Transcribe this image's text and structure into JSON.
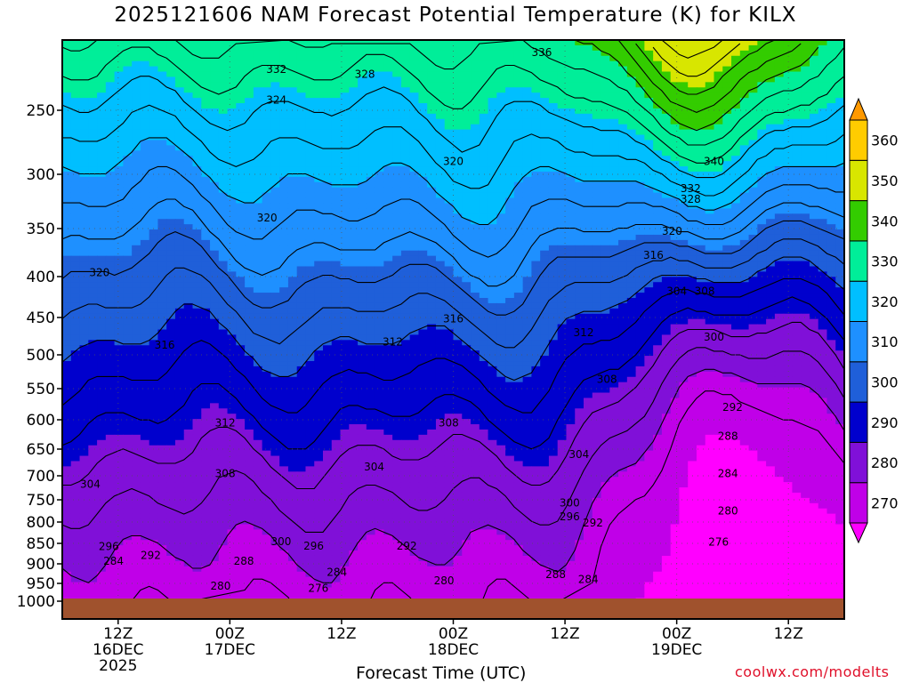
{
  "title": "2025121606 NAM Forecast Potential Temperature (K) for KILX",
  "credit": "coolwx.com/modelts",
  "chart_data": {
    "type": "heatmap",
    "title": "2025121606 NAM Forecast Potential Temperature (K) for KILX",
    "xlabel": "Forecast Time (UTC)",
    "ylabel": "",
    "x_ticks": [
      {
        "hours": 6,
        "lines": [
          "12Z",
          "16DEC",
          "2025"
        ]
      },
      {
        "hours": 18,
        "lines": [
          "00Z",
          "17DEC"
        ]
      },
      {
        "hours": 30,
        "lines": [
          "12Z"
        ]
      },
      {
        "hours": 42,
        "lines": [
          "00Z",
          "18DEC"
        ]
      },
      {
        "hours": 54,
        "lines": [
          "12Z"
        ]
      },
      {
        "hours": 66,
        "lines": [
          "00Z",
          "19DEC"
        ]
      },
      {
        "hours": 78,
        "lines": [
          "12Z"
        ]
      }
    ],
    "xlim_hours": [
      0,
      84
    ],
    "y_ticks": [
      250,
      300,
      350,
      400,
      450,
      500,
      550,
      600,
      650,
      700,
      750,
      800,
      850,
      900,
      950,
      1000
    ],
    "ylim": [
      1000,
      200
    ],
    "colorbar": {
      "levels": [
        270,
        280,
        290,
        300,
        310,
        320,
        330,
        340,
        350,
        360
      ],
      "colors": [
        "#ff00ff",
        "#c000e8",
        "#8010d8",
        "#0000cd",
        "#1f5fd9",
        "#1e90ff",
        "#00bfff",
        "#00ee99",
        "#33cc00",
        "#d8e600",
        "#ffcc00",
        "#ff9900"
      ]
    },
    "contour_labels": [
      {
        "text": "336",
        "t": 51.5,
        "p": 205
      },
      {
        "text": "332",
        "t": 23.0,
        "p": 218
      },
      {
        "text": "328",
        "t": 32.5,
        "p": 222
      },
      {
        "text": "324",
        "t": 23.0,
        "p": 242
      },
      {
        "text": "320",
        "t": 42.0,
        "p": 290
      },
      {
        "text": "340",
        "t": 70.0,
        "p": 290
      },
      {
        "text": "332",
        "t": 67.5,
        "p": 313
      },
      {
        "text": "328",
        "t": 67.5,
        "p": 323
      },
      {
        "text": "320",
        "t": 22.0,
        "p": 340
      },
      {
        "text": "320",
        "t": 65.5,
        "p": 353
      },
      {
        "text": "316",
        "t": 63.5,
        "p": 378
      },
      {
        "text": "320",
        "t": 4.0,
        "p": 396
      },
      {
        "text": "304",
        "t": 66.0,
        "p": 418
      },
      {
        "text": "308",
        "t": 69.0,
        "p": 418
      },
      {
        "text": "316",
        "t": 42.0,
        "p": 452
      },
      {
        "text": "312",
        "t": 56.0,
        "p": 470
      },
      {
        "text": "300",
        "t": 70.0,
        "p": 476
      },
      {
        "text": "316",
        "t": 11.0,
        "p": 487
      },
      {
        "text": "312",
        "t": 35.5,
        "p": 483
      },
      {
        "text": "308",
        "t": 58.5,
        "p": 536
      },
      {
        "text": "292",
        "t": 72.0,
        "p": 580
      },
      {
        "text": "312",
        "t": 17.5,
        "p": 605
      },
      {
        "text": "308",
        "t": 41.5,
        "p": 605
      },
      {
        "text": "288",
        "t": 71.5,
        "p": 628
      },
      {
        "text": "304",
        "t": 55.5,
        "p": 660
      },
      {
        "text": "304",
        "t": 33.5,
        "p": 683
      },
      {
        "text": "308",
        "t": 17.5,
        "p": 696
      },
      {
        "text": "284",
        "t": 71.5,
        "p": 696
      },
      {
        "text": "304",
        "t": 3.0,
        "p": 718
      },
      {
        "text": "300",
        "t": 54.5,
        "p": 757
      },
      {
        "text": "280",
        "t": 71.5,
        "p": 775
      },
      {
        "text": "296",
        "t": 54.5,
        "p": 788
      },
      {
        "text": "292",
        "t": 57.0,
        "p": 802
      },
      {
        "text": "276",
        "t": 70.5,
        "p": 847
      },
      {
        "text": "300",
        "t": 23.5,
        "p": 846
      },
      {
        "text": "296",
        "t": 5.0,
        "p": 858
      },
      {
        "text": "296",
        "t": 27.0,
        "p": 856
      },
      {
        "text": "292",
        "t": 37.0,
        "p": 856
      },
      {
        "text": "292",
        "t": 9.5,
        "p": 879
      },
      {
        "text": "284",
        "t": 5.5,
        "p": 893
      },
      {
        "text": "288",
        "t": 19.5,
        "p": 893
      },
      {
        "text": "284",
        "t": 29.5,
        "p": 922
      },
      {
        "text": "288",
        "t": 53.0,
        "p": 927
      },
      {
        "text": "284",
        "t": 56.5,
        "p": 940
      },
      {
        "text": "280",
        "t": 41.0,
        "p": 943
      },
      {
        "text": "280",
        "t": 17.0,
        "p": 957
      },
      {
        "text": "276",
        "t": 27.5,
        "p": 964
      }
    ]
  }
}
